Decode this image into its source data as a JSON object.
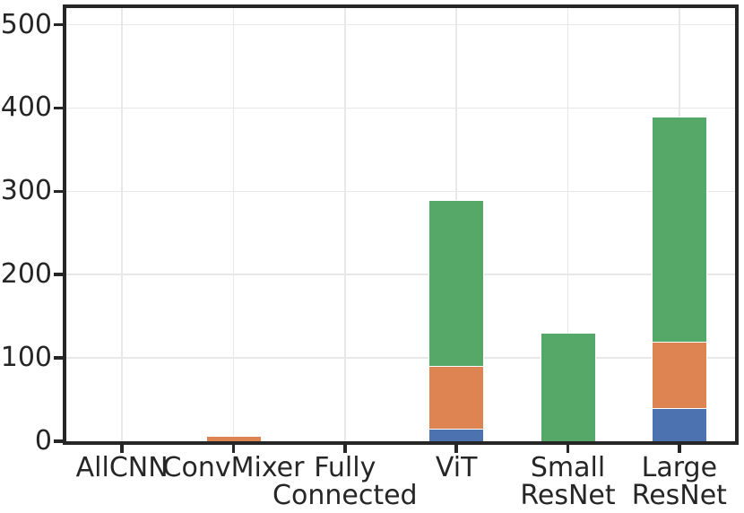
{
  "figure": {
    "background_color": "#FFFFFF",
    "axis_color": "#262626",
    "grid_color": "#E8E8E8",
    "text_color": "#262626"
  },
  "chart_data": {
    "type": "bar",
    "stacked": true,
    "title": "",
    "xlabel": "",
    "ylabel": "",
    "legend": "none",
    "grid": true,
    "categories": [
      "AllCNN",
      "ConvMixer",
      "Fully\nConnected",
      "ViT",
      "Small\nResNet",
      "Large\nResNet"
    ],
    "series": [
      {
        "name": "blue-segment",
        "color": "#4C72B0",
        "values": [
          0,
          0,
          0,
          15,
          0,
          40
        ]
      },
      {
        "name": "orange-segment",
        "color": "#DD8452",
        "values": [
          0,
          7,
          0,
          75,
          0,
          80
        ]
      },
      {
        "name": "green-segment",
        "color": "#55A868",
        "values": [
          0,
          0,
          0,
          200,
          130,
          270
        ]
      }
    ],
    "stack_totals": [
      0,
      7,
      0,
      290,
      130,
      390
    ],
    "yticks": [
      0,
      100,
      200,
      300,
      400,
      500
    ],
    "ylim": [
      0,
      520
    ]
  }
}
